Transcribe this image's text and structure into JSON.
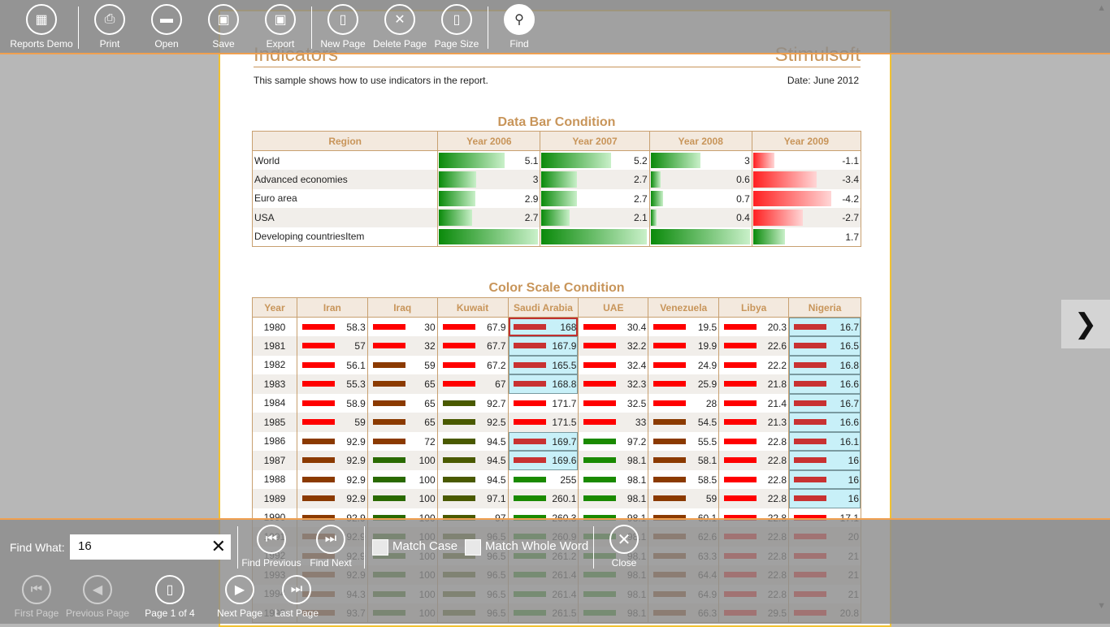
{
  "toolbar": {
    "reports_demo": "Reports Demo",
    "print": "Print",
    "open": "Open",
    "save": "Save",
    "export": "Export",
    "new_page": "New Page",
    "delete_page": "Delete Page",
    "page_size": "Page Size",
    "find": "Find"
  },
  "report": {
    "title": "Indicators",
    "brand": "Stimulsoft",
    "description": "This sample shows how to use indicators in the report.",
    "date": "Date: June 2012"
  },
  "databar": {
    "title": "Data Bar Condition",
    "headers": [
      "Region",
      "Year 2006",
      "Year 2007",
      "Year 2008",
      "Year 2009"
    ],
    "rows": [
      {
        "region": "World",
        "values": [
          "5.1",
          "5.2",
          "3",
          "-1.1"
        ],
        "levels": [
          0.66,
          0.66,
          0.5,
          0.2
        ]
      },
      {
        "region": "Advanced economies",
        "values": [
          "3",
          "2.7",
          "0.6",
          "-3.4"
        ],
        "levels": [
          0.38,
          0.34,
          0.1,
          0.6
        ]
      },
      {
        "region": "Euro area",
        "values": [
          "2.9",
          "2.7",
          "0.7",
          "-4.2"
        ],
        "levels": [
          0.37,
          0.34,
          0.12,
          0.74
        ]
      },
      {
        "region": "USA",
        "values": [
          "2.7",
          "2.1",
          "0.4",
          "-2.7"
        ],
        "levels": [
          0.34,
          0.27,
          0.06,
          0.47
        ]
      },
      {
        "region": "Developing countriesItem",
        "values": [
          "",
          "",
          "",
          "1.7"
        ],
        "levels": [
          1.0,
          1.0,
          1.0,
          0.3
        ]
      }
    ]
  },
  "colorscale": {
    "title": "Color Scale Condition",
    "headers": [
      "Year",
      "Iran",
      "Iraq",
      "Kuwait",
      "Saudi Arabia",
      "UAE",
      "Venezuela",
      "Libya",
      "Nigeria"
    ],
    "rows": [
      {
        "year": "1980",
        "values": [
          "58.3",
          "30",
          "67.9",
          "168",
          "30.4",
          "19.5",
          "20.3",
          "16.7"
        ],
        "colors": [
          "#ff0000",
          "#ff0000",
          "#ff0000",
          "#c83232",
          "#ff0000",
          "#ff0000",
          "#ff0000",
          "#c83232"
        ]
      },
      {
        "year": "1981",
        "values": [
          "57",
          "32",
          "67.7",
          "167.9",
          "32.2",
          "19.9",
          "22.6",
          "16.5"
        ],
        "colors": [
          "#ff0000",
          "#ff0000",
          "#ff0000",
          "#c83232",
          "#ff0000",
          "#ff0000",
          "#ff0000",
          "#c83232"
        ]
      },
      {
        "year": "1982",
        "values": [
          "56.1",
          "59",
          "67.2",
          "165.5",
          "32.4",
          "24.9",
          "22.2",
          "16.8"
        ],
        "colors": [
          "#ff0000",
          "#8b3a00",
          "#ff0000",
          "#c83232",
          "#ff0000",
          "#ff0000",
          "#ff0000",
          "#c83232"
        ]
      },
      {
        "year": "1983",
        "values": [
          "55.3",
          "65",
          "67",
          "168.8",
          "32.3",
          "25.9",
          "21.8",
          "16.6"
        ],
        "colors": [
          "#ff0000",
          "#8b3a00",
          "#ff0000",
          "#c83232",
          "#ff0000",
          "#ff0000",
          "#ff0000",
          "#c83232"
        ]
      },
      {
        "year": "1984",
        "values": [
          "58.9",
          "65",
          "92.7",
          "171.7",
          "32.5",
          "28",
          "21.4",
          "16.7"
        ],
        "colors": [
          "#ff0000",
          "#8b3a00",
          "#4a5a00",
          "#ff0000",
          "#ff0000",
          "#ff0000",
          "#ff0000",
          "#c83232"
        ]
      },
      {
        "year": "1985",
        "values": [
          "59",
          "65",
          "92.5",
          "171.5",
          "33",
          "54.5",
          "21.3",
          "16.6"
        ],
        "colors": [
          "#ff0000",
          "#8b3a00",
          "#4a5a00",
          "#ff0000",
          "#ff0000",
          "#8b3a00",
          "#ff0000",
          "#c83232"
        ]
      },
      {
        "year": "1986",
        "values": [
          "92.9",
          "72",
          "94.5",
          "169.7",
          "97.2",
          "55.5",
          "22.8",
          "16.1"
        ],
        "colors": [
          "#8b3a00",
          "#8b3a00",
          "#4a5a00",
          "#c83232",
          "#1a8a00",
          "#8b3a00",
          "#ff0000",
          "#c83232"
        ]
      },
      {
        "year": "1987",
        "values": [
          "92.9",
          "100",
          "94.5",
          "169.6",
          "98.1",
          "58.1",
          "22.8",
          "16"
        ],
        "colors": [
          "#8b3a00",
          "#2a6a00",
          "#4a5a00",
          "#c83232",
          "#1a8a00",
          "#8b3a00",
          "#ff0000",
          "#c83232"
        ]
      },
      {
        "year": "1988",
        "values": [
          "92.9",
          "100",
          "94.5",
          "255",
          "98.1",
          "58.5",
          "22.8",
          "16"
        ],
        "colors": [
          "#8b3a00",
          "#2a6a00",
          "#4a5a00",
          "#1a8a00",
          "#1a8a00",
          "#8b3a00",
          "#ff0000",
          "#c83232"
        ]
      },
      {
        "year": "1989",
        "values": [
          "92.9",
          "100",
          "97.1",
          "260.1",
          "98.1",
          "59",
          "22.8",
          "16"
        ],
        "colors": [
          "#8b3a00",
          "#2a6a00",
          "#4a5a00",
          "#1a8a00",
          "#1a8a00",
          "#8b3a00",
          "#ff0000",
          "#c83232"
        ]
      },
      {
        "year": "1990",
        "values": [
          "92.9",
          "100",
          "97",
          "260.3",
          "98.1",
          "60.1",
          "22.8",
          "17.1"
        ],
        "colors": [
          "#8b3a00",
          "#2a6a00",
          "#4a5a00",
          "#1a8a00",
          "#1a8a00",
          "#8b3a00",
          "#ff0000",
          "#ff0000"
        ]
      },
      {
        "year": "1991",
        "values": [
          "92.9",
          "100",
          "96.5",
          "260.9",
          "98.1",
          "62.6",
          "22.8",
          "20"
        ],
        "colors": [
          "#8b3a00",
          "#2a6a00",
          "#4a5a00",
          "#1a8a00",
          "#1a8a00",
          "#8b3a00",
          "#ff0000",
          "#ff0000"
        ]
      },
      {
        "year": "1992",
        "values": [
          "92.9",
          "100",
          "96.5",
          "261.2",
          "98.1",
          "63.3",
          "22.8",
          "21"
        ],
        "colors": [
          "#8b3a00",
          "#2a6a00",
          "#4a5a00",
          "#1a8a00",
          "#1a8a00",
          "#8b3a00",
          "#ff0000",
          "#ff0000"
        ]
      },
      {
        "year": "1993",
        "values": [
          "92.9",
          "100",
          "96.5",
          "261.4",
          "98.1",
          "64.4",
          "22.8",
          "21"
        ],
        "colors": [
          "#8b3a00",
          "#2a6a00",
          "#4a5a00",
          "#1a8a00",
          "#1a8a00",
          "#8b3a00",
          "#ff0000",
          "#ff0000"
        ]
      },
      {
        "year": "1994",
        "values": [
          "94.3",
          "100",
          "96.5",
          "261.4",
          "98.1",
          "64.9",
          "22.8",
          "21"
        ],
        "colors": [
          "#8b3a00",
          "#2a6a00",
          "#4a5a00",
          "#1a8a00",
          "#1a8a00",
          "#8b3a00",
          "#ff0000",
          "#ff0000"
        ]
      },
      {
        "year": "1995",
        "values": [
          "93.7",
          "100",
          "96.5",
          "261.5",
          "98.1",
          "66.3",
          "29.5",
          "20.8"
        ],
        "colors": [
          "#8b3a00",
          "#2a6a00",
          "#4a5a00",
          "#1a8a00",
          "#1a8a00",
          "#8b3a00",
          "#ff0000",
          "#ff0000"
        ]
      }
    ]
  },
  "find": {
    "label": "Find What:",
    "value": "16",
    "find_previous": "Find Previous",
    "find_next": "Find Next",
    "match_case": "Match Case",
    "match_whole_word": "Match Whole Word",
    "close": "Close"
  },
  "nav": {
    "first_page": "First Page",
    "previous_page": "Previous Page",
    "page_indicator": "Page 1 of 4",
    "next_page": "Next Page",
    "last_page": "Last Page"
  }
}
